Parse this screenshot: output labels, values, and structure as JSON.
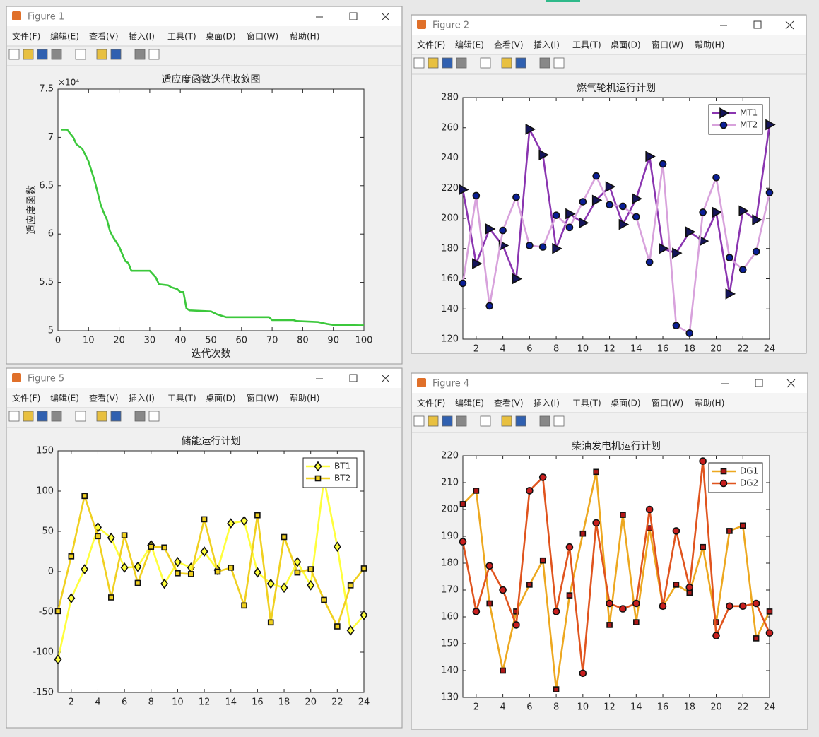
{
  "menu": [
    "文件(F)",
    "编辑(E)",
    "查看(V)",
    "插入(I)",
    "工具(T)",
    "桌面(D)",
    "窗口(W)",
    "帮助(H)"
  ],
  "windows": [
    {
      "title": "Figure 1",
      "chart": {
        "type": "line",
        "title": "适应度函数迭代收敛图",
        "xlabel": "迭代次数",
        "ylabel": "适应度函数",
        "y_exponent": "×10⁴",
        "x": [
          1,
          3,
          5,
          6,
          8,
          10,
          12,
          14,
          15,
          16,
          17,
          18,
          20,
          22,
          23,
          24,
          30,
          32,
          33,
          36,
          37,
          39,
          40,
          41,
          42,
          43,
          50,
          52,
          53,
          55,
          69,
          70,
          77,
          78,
          85,
          88,
          90,
          100
        ],
        "series": [
          {
            "color": "#3cc83c",
            "values": [
              70800,
              70800,
              70000,
              69300,
              68800,
              67500,
              65500,
              63000,
              62200,
              61500,
              60300,
              59700,
              58700,
              57200,
              57000,
              56200,
              56200,
              55500,
              54800,
              54700,
              54500,
              54300,
              54000,
              54000,
              52300,
              52100,
              52000,
              51700,
              51600,
              51400,
              51400,
              51100,
              51100,
              51000,
              50900,
              50700,
              50600,
              50550
            ]
          }
        ],
        "xlim": [
          0,
          100
        ],
        "xticks": [
          0,
          10,
          20,
          30,
          40,
          50,
          60,
          70,
          80,
          90,
          100
        ],
        "ylim": [
          50000,
          75000
        ],
        "yticks": [
          {
            "value": 50000,
            "label": "5"
          },
          {
            "value": 55000,
            "label": "5.5"
          },
          {
            "value": 60000,
            "label": "6"
          },
          {
            "value": 65000,
            "label": "6.5"
          },
          {
            "value": 70000,
            "label": "7"
          },
          {
            "value": 75000,
            "label": "7.5"
          }
        ]
      }
    },
    {
      "title": "Figure 2",
      "chart": {
        "type": "line",
        "title": "燃气轮机运行计划",
        "legend": "northeast",
        "x": [
          1,
          2,
          3,
          4,
          5,
          6,
          7,
          8,
          9,
          10,
          11,
          12,
          13,
          14,
          15,
          16,
          17,
          18,
          19,
          20,
          21,
          22,
          23,
          24
        ],
        "series": [
          {
            "name": "MT1",
            "color": "#8a35b0",
            "marker": "triangle-right",
            "marker_color": "#14145a",
            "values": [
              219,
              170,
              193,
              182,
              160,
              259,
              242,
              180,
              203,
              197,
              212,
              221,
              196,
              213,
              241,
              180,
              177,
              191,
              185,
              204,
              150,
              205,
              199,
              262
            ]
          },
          {
            "name": "MT2",
            "color": "#d8a2dc",
            "marker": "circle",
            "marker_color": "#0a1e96",
            "values": [
              157,
              215,
              142,
              192,
              214,
              182,
              181,
              202,
              194,
              211,
              228,
              209,
              208,
              201,
              171,
              236,
              129,
              124,
              204,
              227,
              174,
              166,
              178,
              217
            ]
          }
        ],
        "xlim": [
          1,
          24
        ],
        "xticks": [
          2,
          4,
          6,
          8,
          10,
          12,
          14,
          16,
          18,
          20,
          22,
          24
        ],
        "ylim": [
          120,
          280
        ],
        "yticks": [
          120,
          140,
          160,
          180,
          200,
          220,
          240,
          260,
          280
        ]
      }
    },
    {
      "title": "Figure 5",
      "chart": {
        "type": "line",
        "title": "储能运行计划",
        "legend": "northeast",
        "x": [
          1,
          2,
          3,
          4,
          5,
          6,
          7,
          8,
          9,
          10,
          11,
          12,
          13,
          14,
          15,
          16,
          17,
          18,
          19,
          20,
          21,
          22,
          23,
          24
        ],
        "series": [
          {
            "name": "BT1",
            "color": "#ffff3c",
            "marker": "diamond",
            "marker_color": "#ffff3c",
            "values": [
              -109,
              -33,
              3,
              55,
              42,
              5,
              6,
              33,
              -15,
              12,
              5,
              25,
              2,
              60,
              63,
              -1,
              -15,
              -20,
              12,
              -17,
              115,
              31,
              -73,
              -54
            ]
          },
          {
            "name": "BT2",
            "color": "#f0d020",
            "marker": "square",
            "marker_color": "#f0d020",
            "values": [
              -49,
              19,
              94,
              44,
              -32,
              45,
              -14,
              31,
              30,
              -2,
              -3,
              65,
              0,
              5,
              -42,
              70,
              -63,
              43,
              -1,
              3,
              -35,
              -68,
              -17,
              4
            ]
          }
        ],
        "xlim": [
          1,
          24
        ],
        "xticks": [
          2,
          4,
          6,
          8,
          10,
          12,
          14,
          16,
          18,
          20,
          22,
          24
        ],
        "ylim": [
          -150,
          150
        ],
        "yticks": [
          -150,
          -100,
          -50,
          0,
          50,
          100,
          150
        ]
      }
    },
    {
      "title": "Figure 4",
      "chart": {
        "type": "line",
        "title": "柴油发电机运行计划",
        "legend": "northeast",
        "x": [
          1,
          2,
          3,
          4,
          5,
          6,
          7,
          8,
          9,
          10,
          11,
          12,
          13,
          14,
          15,
          16,
          17,
          18,
          19,
          20,
          21,
          22,
          23,
          24
        ],
        "series": [
          {
            "name": "DG1",
            "color": "#eda820",
            "marker": "square",
            "marker_color": "#b01818",
            "values": [
              202,
              207,
              165,
              140,
              162,
              172,
              181,
              133,
              168,
              191,
              214,
              157,
              198,
              158,
              193,
              164,
              172,
              169,
              186,
              158,
              192,
              194,
              152,
              162
            ]
          },
          {
            "name": "DG2",
            "color": "#e0541e",
            "marker": "circle",
            "marker_color": "#c81e1e",
            "values": [
              188,
              162,
              179,
              170,
              157,
              207,
              212,
              162,
              186,
              139,
              195,
              165,
              163,
              165,
              200,
              164,
              192,
              171,
              218,
              153,
              164,
              164,
              165,
              154
            ]
          }
        ],
        "xlim": [
          1,
          24
        ],
        "xticks": [
          2,
          4,
          6,
          8,
          10,
          12,
          14,
          16,
          18,
          20,
          22,
          24
        ],
        "ylim": [
          130,
          220
        ],
        "yticks": [
          130,
          140,
          150,
          160,
          170,
          180,
          190,
          200,
          210,
          220
        ]
      }
    }
  ]
}
